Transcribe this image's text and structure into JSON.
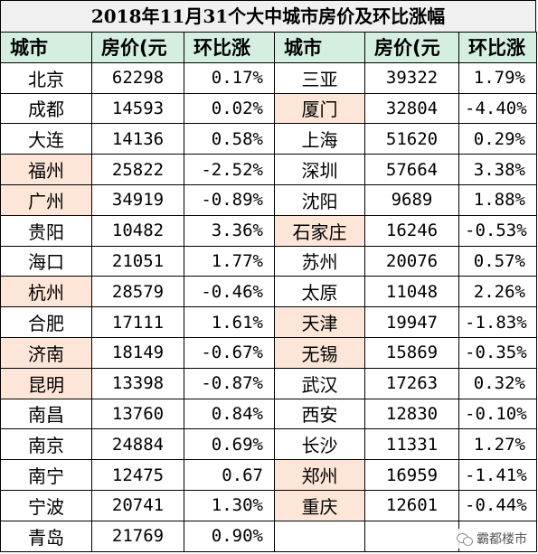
{
  "title": "2018年11月31个大中城市房价及环比涨幅",
  "headers": [
    "城市",
    "房价(元",
    "环比涨",
    "城市",
    "房价(元",
    "环比涨"
  ],
  "rows": [
    {
      "c1": "北京",
      "p1": "62298",
      "r1": "0.17%",
      "c2": "三亚",
      "p2": "39322",
      "r2": "1.79%"
    },
    {
      "c1": "成都",
      "p1": "14593",
      "r1": "0.02%",
      "c2": "厦门",
      "p2": "32804",
      "r2": "-4.40%"
    },
    {
      "c1": "大连",
      "p1": "14136",
      "r1": "0.58%",
      "c2": "上海",
      "p2": "51620",
      "r2": "0.29%"
    },
    {
      "c1": "福州",
      "p1": "25822",
      "r1": "-2.52%",
      "c2": "深圳",
      "p2": "57664",
      "r2": "3.38%"
    },
    {
      "c1": "广州",
      "p1": "34919",
      "r1": "-0.89%",
      "c2": "沈阳",
      "p2": "9689",
      "r2": "1.88%"
    },
    {
      "c1": "贵阳",
      "p1": "10482",
      "r1": "3.36%",
      "c2": "石家庄",
      "p2": "16246",
      "r2": "-0.53%"
    },
    {
      "c1": "海口",
      "p1": "21051",
      "r1": "1.77%",
      "c2": "苏州",
      "p2": "20076",
      "r2": "0.57%"
    },
    {
      "c1": "杭州",
      "p1": "28579",
      "r1": "-0.46%",
      "c2": "太原",
      "p2": "11048",
      "r2": "2.26%"
    },
    {
      "c1": "合肥",
      "p1": "17111",
      "r1": "1.61%",
      "c2": "天津",
      "p2": "19947",
      "r2": "-1.83%"
    },
    {
      "c1": "济南",
      "p1": "18149",
      "r1": "-0.67%",
      "c2": "无锡",
      "p2": "15869",
      "r2": "-0.35%"
    },
    {
      "c1": "昆明",
      "p1": "13398",
      "r1": "-0.87%",
      "c2": "武汉",
      "p2": "17263",
      "r2": "0.32%"
    },
    {
      "c1": "南昌",
      "p1": "13760",
      "r1": "0.84%",
      "c2": "西安",
      "p2": "12830",
      "r2": "-0.10%"
    },
    {
      "c1": "南京",
      "p1": "24884",
      "r1": "0.69%",
      "c2": "长沙",
      "p2": "11331",
      "r2": "1.27%"
    },
    {
      "c1": "南宁",
      "p1": "12475",
      "r1": "0.67",
      "c2": "郑州",
      "p2": "16959",
      "r2": "-1.41%"
    },
    {
      "c1": "宁波",
      "p1": "20741",
      "r1": "1.30%",
      "c2": "重庆",
      "p2": "12601",
      "r2": "-0.44%"
    },
    {
      "c1": "青岛",
      "p1": "21769",
      "r1": "0.90%",
      "c2": "",
      "p2": "",
      "r2": ""
    }
  ],
  "highlight_color": "#fde6d8",
  "header_color": "#d4efe0",
  "brand": {
    "icon": "wechat-icon",
    "text": "霸都楼市"
  }
}
